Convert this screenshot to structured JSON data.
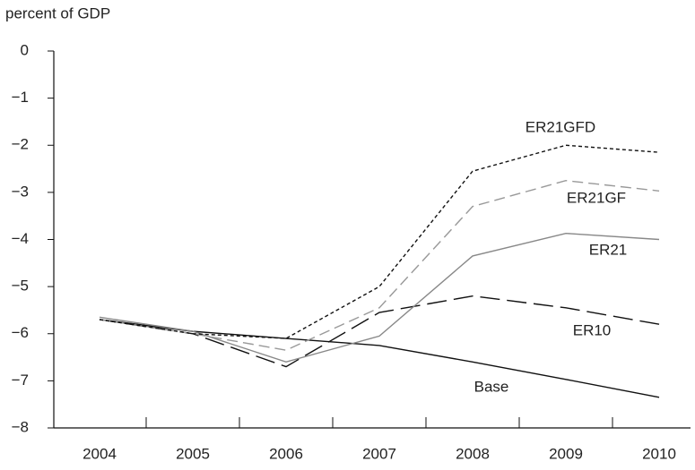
{
  "chart_data": {
    "type": "line",
    "y_axis_label": "percent of GDP",
    "categories": [
      "2004",
      "2005",
      "2006",
      "2007",
      "2008",
      "2009",
      "2010"
    ],
    "ylim": [
      -8,
      0
    ],
    "yticks": [
      0,
      {
        "value": -1,
        "label": "−1"
      },
      {
        "value": -2,
        "label": "−2"
      },
      {
        "value": -3,
        "label": "−3"
      },
      {
        "value": -4,
        "label": "−4"
      },
      {
        "value": -5,
        "label": "−5"
      },
      {
        "value": -6,
        "label": "−6"
      },
      {
        "value": -7,
        "label": "−7"
      },
      {
        "value": -8,
        "label": "−8"
      }
    ],
    "series": [
      {
        "name": "Base",
        "color": "#111111",
        "dash": "none",
        "values": [
          -5.7,
          -5.95,
          -6.1,
          -6.25,
          -6.6,
          -6.97,
          -7.35
        ]
      },
      {
        "name": "ER10",
        "color": "#111111",
        "dash": "22 8",
        "values": [
          -5.7,
          -6.0,
          -6.7,
          -5.55,
          -5.2,
          -5.45,
          -5.8
        ]
      },
      {
        "name": "ER21",
        "color": "#888888",
        "dash": "none",
        "values": [
          -5.65,
          -5.95,
          -6.6,
          -6.05,
          -4.35,
          -3.87,
          -4.0
        ]
      },
      {
        "name": "ER21GF",
        "color": "#999999",
        "dash": "12 6",
        "values": [
          -5.7,
          -6.0,
          -6.35,
          -5.45,
          -3.3,
          -2.75,
          -2.97
        ]
      },
      {
        "name": "ER21GFD",
        "color": "#111111",
        "dash": "4 3",
        "values": [
          -5.7,
          -6.0,
          -6.1,
          -5.0,
          -2.55,
          -2.0,
          -2.15
        ]
      }
    ]
  }
}
